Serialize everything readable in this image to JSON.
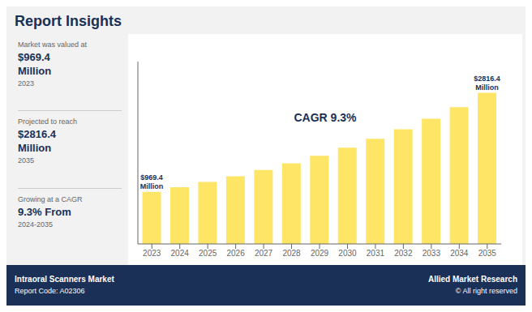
{
  "chart_data": {
    "type": "bar",
    "title": "Report Insights",
    "categories": [
      "2023",
      "2024",
      "2025",
      "2026",
      "2027",
      "2028",
      "2029",
      "2030",
      "2031",
      "2032",
      "2033",
      "2034",
      "2035"
    ],
    "values": [
      969.4,
      1059.0,
      1156.0,
      1262.0,
      1378.0,
      1505.0,
      1643.0,
      1794.0,
      1959.0,
      2139.0,
      2335.0,
      2549.0,
      2816.4
    ],
    "color": "#FFE566",
    "ylim": [
      0,
      3400
    ],
    "grid": false,
    "legend": false,
    "tick_labels": "x",
    "annotations": [
      {
        "text": "$969.4\nMillion",
        "category": "2023"
      },
      {
        "text": "$2816.4\nMillion",
        "category": "2035"
      },
      {
        "text": "CAGR 9.3%"
      }
    ],
    "sidebar": [
      [
        "Market was valued at",
        "$969.4",
        "Million",
        "2023"
      ],
      [
        "Projected to reach",
        "$2816.4",
        "Million",
        "2035"
      ],
      [
        "Growing at a CAGR",
        "9.3% From",
        "2024-2035"
      ]
    ],
    "footer": {
      "left": [
        "Intraoral Scanners Market",
        "Report Code: A02306"
      ],
      "right": [
        "Allied Market Research",
        "© All right reserved"
      ]
    }
  }
}
